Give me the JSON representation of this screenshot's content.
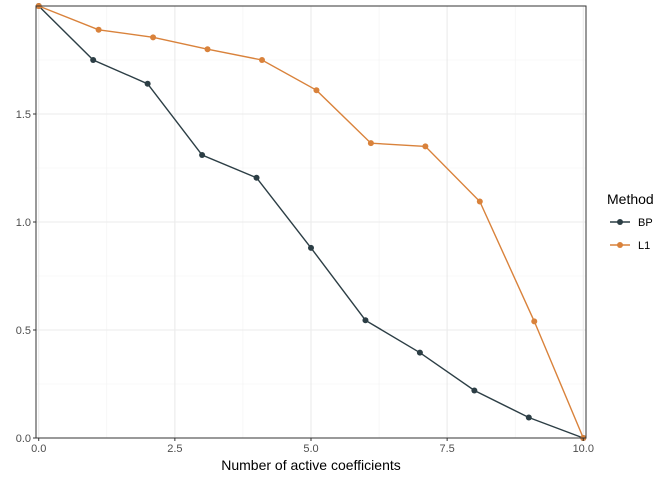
{
  "chart_data": {
    "type": "line",
    "xlabel": "Number of active coefficients",
    "ylabel": "",
    "xlim": [
      -0.05,
      10.05
    ],
    "ylim": [
      0,
      2.0
    ],
    "x_ticks": [
      "0.0",
      "2.5",
      "5.0",
      "7.5",
      "10.0"
    ],
    "y_ticks": [
      "0.0",
      "0.5",
      "1.0",
      "1.5"
    ],
    "grid": true,
    "legend_title": "Method",
    "legend_position": "right",
    "series": [
      {
        "name": "BP",
        "color": "#2c3e45",
        "x": [
          0,
          1,
          2,
          3,
          4,
          5,
          6,
          7,
          8,
          9,
          10
        ],
        "y": [
          2.0,
          1.75,
          1.64,
          1.31,
          1.205,
          0.88,
          0.545,
          0.395,
          0.22,
          0.095,
          0.0
        ]
      },
      {
        "name": "L1",
        "color": "#d9823b",
        "x": [
          0,
          1.1,
          2.1,
          3.1,
          4.1,
          5.1,
          6.1,
          7.1,
          8.1,
          9.1,
          10.0
        ],
        "y": [
          2.0,
          1.89,
          1.855,
          1.8,
          1.75,
          1.61,
          1.365,
          1.35,
          1.095,
          0.54,
          0.0
        ]
      }
    ]
  }
}
